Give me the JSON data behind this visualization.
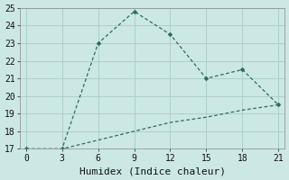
{
  "line1_x": [
    0,
    3,
    6,
    9,
    12,
    15,
    18,
    21
  ],
  "line1_y": [
    17,
    17,
    23,
    24.8,
    23.5,
    21,
    21.5,
    19.5
  ],
  "line2_x": [
    0,
    3,
    6,
    9,
    12,
    15,
    18,
    21
  ],
  "line2_y": [
    17,
    17,
    17.5,
    18.0,
    18.5,
    18.8,
    19.2,
    19.5
  ],
  "line_color": "#2a6b64",
  "bg_color": "#cce8e4",
  "grid_color": "#aacfca",
  "xlabel": "Humidex (Indice chaleur)",
  "xlim": [
    -0.5,
    21.5
  ],
  "ylim": [
    17,
    25
  ],
  "xticks": [
    0,
    3,
    6,
    9,
    12,
    15,
    18,
    21
  ],
  "yticks": [
    17,
    18,
    19,
    20,
    21,
    22,
    23,
    24,
    25
  ],
  "label_fontsize": 8,
  "tick_fontsize": 7
}
